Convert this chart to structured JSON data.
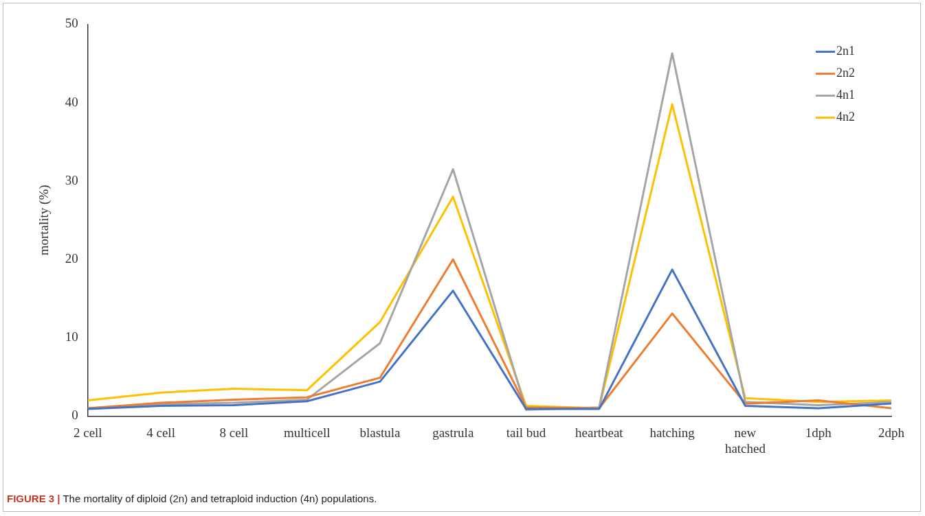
{
  "chart_data": {
    "type": "line",
    "ylabel": "mortality (%)",
    "categories": [
      "2 cell",
      "4 cell",
      "8 cell",
      "multicell",
      "blastula",
      "gastrula",
      "tail bud",
      "heartbeat",
      "hatching",
      "new hatched",
      "1dph",
      "2dph"
    ],
    "series": [
      {
        "name": "2n1",
        "color": "#4472c4",
        "values": [
          0.9,
          1.3,
          1.4,
          1.9,
          4.4,
          16,
          0.9,
          0.9,
          18.7,
          1.3,
          1.0,
          1.6
        ]
      },
      {
        "name": "2n2",
        "color": "#ed7d31",
        "values": [
          1.0,
          1.7,
          2.1,
          2.4,
          4.9,
          20,
          1.1,
          1.0,
          13.1,
          1.6,
          2.0,
          1.0
        ]
      },
      {
        "name": "4n1",
        "color": "#a5a5a5",
        "values": [
          1.0,
          1.5,
          1.7,
          2.1,
          9.3,
          31.5,
          0.8,
          1.1,
          46.3,
          1.8,
          1.4,
          1.8
        ]
      },
      {
        "name": "4n2",
        "color": "#ffc000",
        "values": [
          2.0,
          3.0,
          3.5,
          3.3,
          12,
          28,
          1.3,
          1.0,
          39.8,
          2.3,
          1.8,
          2.0
        ]
      }
    ],
    "ylim": [
      0,
      50
    ],
    "yticks": [
      0,
      10,
      20,
      30,
      40,
      50
    ],
    "grid": false,
    "legend": "top right",
    "marker": "none",
    "line_style": "solid",
    "annotations": [
      "FIGURE 3 | The mortality of diploid (2n) and tetraploid induction (4n) populations."
    ]
  }
}
